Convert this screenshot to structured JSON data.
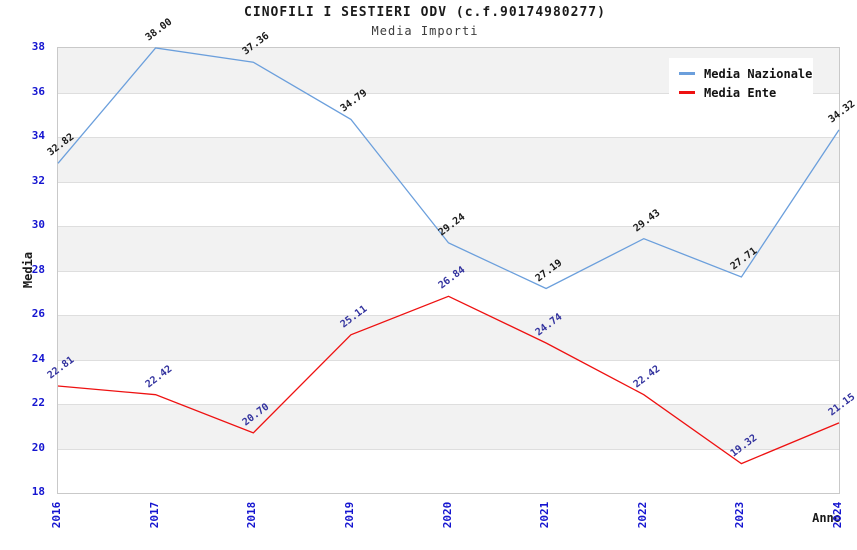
{
  "chart_data": {
    "type": "line",
    "title": "CINOFILI I SESTIERI ODV (c.f.90174980277)",
    "subtitle": "Media Importi",
    "xlabel": "Anno",
    "ylabel": "Media",
    "categories": [
      "2016",
      "2017",
      "2018",
      "2019",
      "2020",
      "2021",
      "2022",
      "2023",
      "2024"
    ],
    "series": [
      {
        "name": "Media Nazionale",
        "color": "#6b9fdc",
        "label_color": "#1a1a1a",
        "values": [
          32.82,
          38.0,
          37.36,
          34.79,
          29.24,
          27.19,
          29.43,
          27.71,
          34.32
        ]
      },
      {
        "name": "Media Ente",
        "color": "#ee1111",
        "label_color": "#32329e",
        "values": [
          22.81,
          22.42,
          20.7,
          25.11,
          26.84,
          24.74,
          22.42,
          19.32,
          21.15
        ]
      }
    ],
    "ylim": [
      18,
      38
    ],
    "ytick_step": 2,
    "grid": "horizontal-bands",
    "legend_position": "top-right",
    "band_colors": [
      "#f2f2f2",
      "#ffffff"
    ],
    "tick_label_color": "#1515d0"
  }
}
